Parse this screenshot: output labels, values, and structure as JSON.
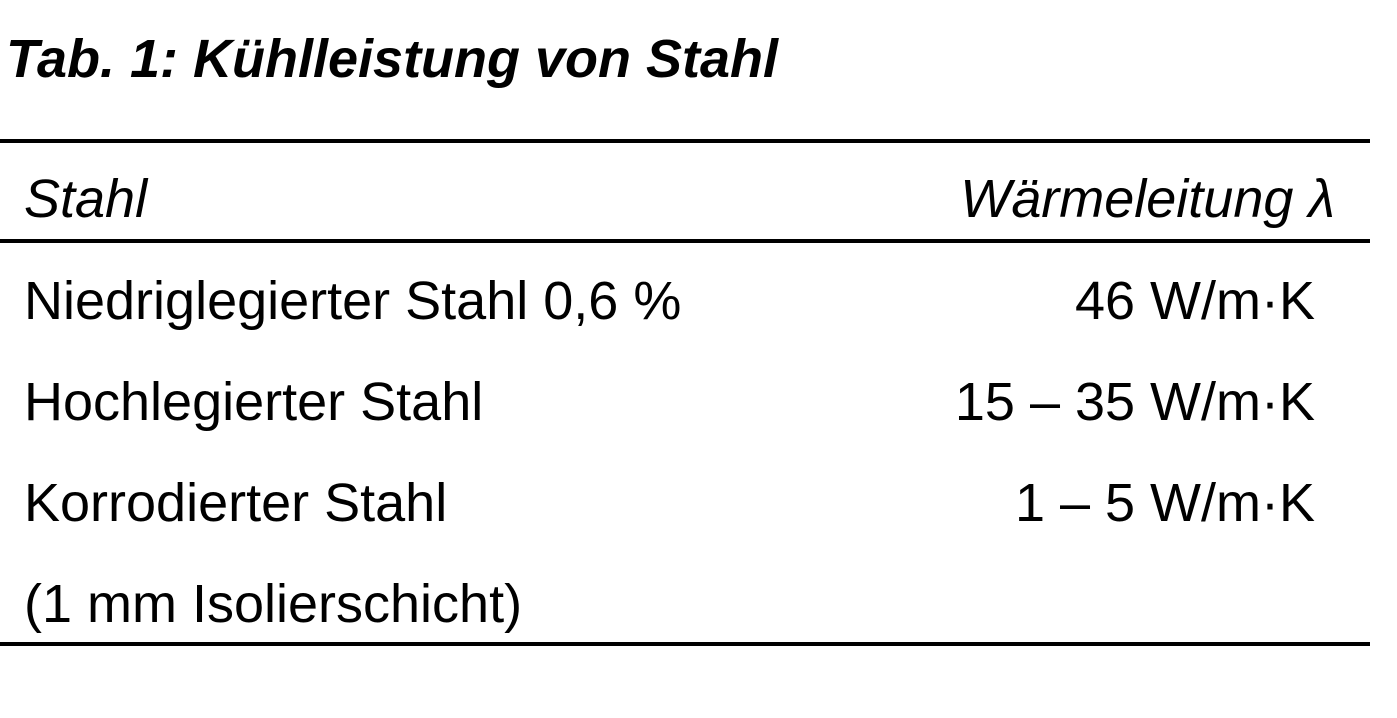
{
  "title": "Tab. 1: Kühlleistung von Stahl",
  "table": {
    "header": [
      "Stahl",
      "Wärmeleitung λ"
    ],
    "rows": [
      {
        "name": [
          "Niedriglegierter Stahl 0,6 %"
        ],
        "value": "46 W/m·K"
      },
      {
        "name": [
          "Hochlegierter Stahl"
        ],
        "value": "15 – 35 W/m·K"
      },
      {
        "name": [
          "Korrodierter Stahl",
          "(1 mm Isolierschicht)"
        ],
        "value": "1 – 5 W/m·K"
      }
    ]
  }
}
